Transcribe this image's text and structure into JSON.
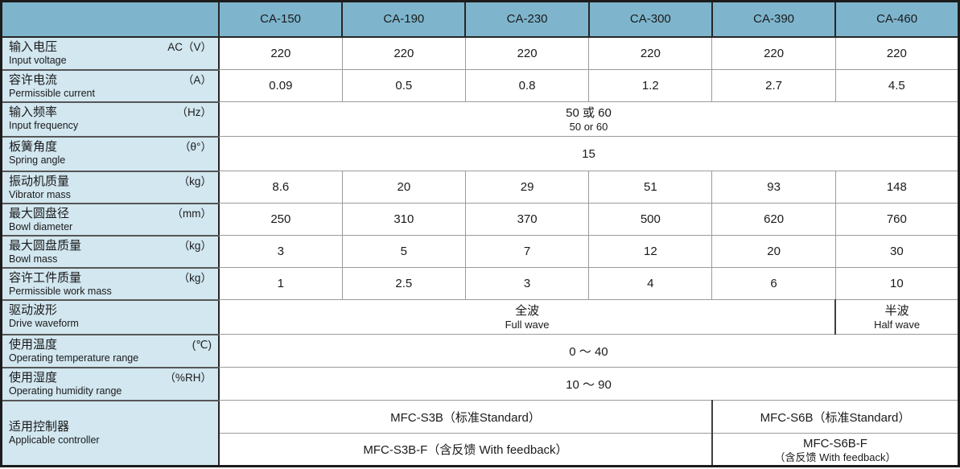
{
  "colors": {
    "header_bg": "#7eb5cd",
    "label_bg": "#d2e7f0",
    "outer_border": "#1c1c1c",
    "grid_gray": "#9b9b9b"
  },
  "table": {
    "columns": [
      "CA-150",
      "CA-190",
      "CA-230",
      "CA-300",
      "CA-390",
      "CA-460"
    ],
    "rows": {
      "input_voltage": {
        "zh": "输入电压",
        "en": "Input voltage",
        "unit": "AC（V）",
        "values": [
          "220",
          "220",
          "220",
          "220",
          "220",
          "220"
        ]
      },
      "current": {
        "zh": "容许电流",
        "en": "Permissible current",
        "unit": "（A）",
        "values": [
          "0.09",
          "0.5",
          "0.8",
          "1.2",
          "2.7",
          "4.5"
        ]
      },
      "frequency": {
        "zh": "输入频率",
        "en": "Input frequency",
        "unit": "（Hz）",
        "span_zh": "50 或 60",
        "span_en": "50 or 60"
      },
      "spring_angle": {
        "zh": "板簧角度",
        "en": "Spring angle",
        "unit": "（θ°）",
        "span": "15"
      },
      "vibrator_mass": {
        "zh": "振动机质量",
        "en": "Vibrator mass",
        "unit": "（kg）",
        "values": [
          "8.6",
          "20",
          "29",
          "51",
          "93",
          "148"
        ]
      },
      "bowl_diameter": {
        "zh": "最大圆盘径",
        "en": "Bowl diameter",
        "unit": "（mm）",
        "values": [
          "250",
          "310",
          "370",
          "500",
          "620",
          "760"
        ]
      },
      "bowl_mass": {
        "zh": "最大圆盘质量",
        "en": "Bowl mass",
        "unit": "（kg）",
        "values": [
          "3",
          "5",
          "7",
          "12",
          "20",
          "30"
        ]
      },
      "work_mass": {
        "zh": "容许工件质量",
        "en": "Permissible work mass",
        "unit": "（kg）",
        "values": [
          "1",
          "2.5",
          "3",
          "4",
          "6",
          "10"
        ]
      },
      "waveform": {
        "zh": "驱动波形",
        "en": "Drive waveform",
        "full_zh": "全波",
        "full_en": "Full wave",
        "half_zh": "半波",
        "half_en": "Half wave"
      },
      "temperature": {
        "zh": "使用温度",
        "en": "Operating temperature range",
        "unit": "(℃)",
        "span": "0 ～ 40"
      },
      "humidity": {
        "zh": "使用湿度",
        "en": "Operating humidity range",
        "unit": "（%RH）",
        "span": "10 ～ 90"
      },
      "controller": {
        "zh": "适用控制器",
        "en": "Applicable controller",
        "standard_left": "MFC-S3B（标准Standard）",
        "standard_right": "MFC-S6B（标准Standard）",
        "feedback_left": "MFC-S3B-F（含反馈 With feedback）",
        "feedback_right_line1": "MFC-S6B-F",
        "feedback_right_line2": "（含反馈 With feedback）"
      }
    }
  }
}
